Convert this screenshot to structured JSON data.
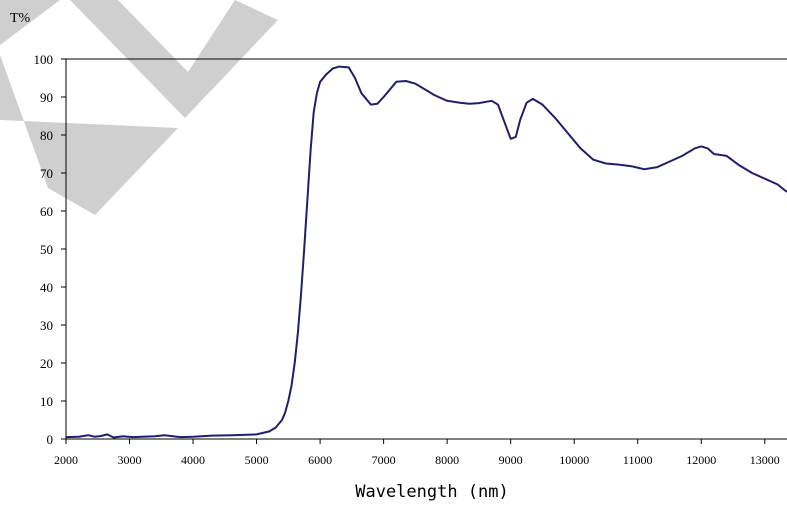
{
  "chart_data": {
    "type": "line",
    "title": "",
    "ylabel": "T%",
    "xlabel": "Wavelength (nm)",
    "xlim": [
      2000,
      13350
    ],
    "ylim": [
      0,
      100
    ],
    "x_ticks": [
      2000,
      3000,
      4000,
      5000,
      6000,
      7000,
      8000,
      9000,
      10000,
      11000,
      12000,
      13000
    ],
    "y_ticks": [
      0,
      10,
      20,
      30,
      40,
      50,
      60,
      70,
      80,
      90,
      100
    ],
    "grid": false,
    "line_color": "#1f1f6e",
    "watermark_color": "#cfcfcf",
    "series": [
      {
        "x": [
          2000,
          2200,
          2350,
          2450,
          2550,
          2650,
          2750,
          2900,
          3050,
          3200,
          3400,
          3550,
          3650,
          3800,
          4000,
          4300,
          4600,
          5000,
          5200,
          5300,
          5400,
          5450,
          5500,
          5550,
          5600,
          5650,
          5700,
          5750,
          5800,
          5850,
          5900,
          5950,
          6000,
          6100,
          6200,
          6300,
          6450,
          6550,
          6650,
          6800,
          6900,
          7000,
          7100,
          7200,
          7350,
          7500,
          7650,
          7800,
          8000,
          8200,
          8350,
          8500,
          8700,
          8800,
          8900,
          9000,
          9080,
          9150,
          9250,
          9350,
          9500,
          9700,
          9900,
          10100,
          10300,
          10500,
          10700,
          10900,
          11100,
          11300,
          11500,
          11700,
          11900,
          12000,
          12100,
          12200,
          12400,
          12600,
          12800,
          13000,
          13200,
          13350
        ],
        "y": [
          0.5,
          0.6,
          1.0,
          0.6,
          0.8,
          1.2,
          0.4,
          0.7,
          0.5,
          0.6,
          0.7,
          1.0,
          0.8,
          0.5,
          0.6,
          0.9,
          1.0,
          1.2,
          2.0,
          3.0,
          5.0,
          7.0,
          10.0,
          14.0,
          20.0,
          28.0,
          38.0,
          50.0,
          63.0,
          76.0,
          86.0,
          91.0,
          94.0,
          96.0,
          97.5,
          98.0,
          97.8,
          95.0,
          91.0,
          88.0,
          88.2,
          90.0,
          92.0,
          94.0,
          94.2,
          93.5,
          92.0,
          90.5,
          89.0,
          88.5,
          88.2,
          88.4,
          89.0,
          88.0,
          83.5,
          79.0,
          79.5,
          84.0,
          88.5,
          89.5,
          88.0,
          84.5,
          80.5,
          76.5,
          73.5,
          72.5,
          72.2,
          71.8,
          71.0,
          71.5,
          73.0,
          74.5,
          76.5,
          77.0,
          76.5,
          75.0,
          74.5,
          72.0,
          70.0,
          68.5,
          67.0,
          65.0
        ]
      }
    ]
  }
}
